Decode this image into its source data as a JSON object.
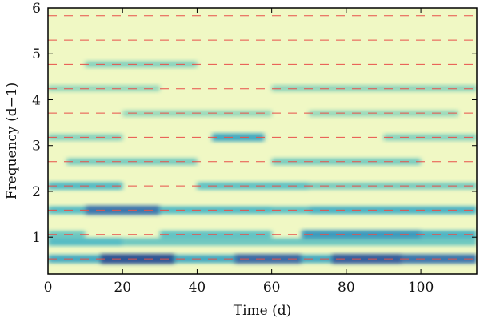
{
  "chart_data": {
    "type": "heatmap",
    "title": "",
    "xlabel": "Time (d)",
    "ylabel": "Frequency (d−1)",
    "xlim": [
      0,
      115
    ],
    "ylim": [
      0.2,
      6
    ],
    "x_ticks": [
      0,
      20,
      40,
      60,
      80,
      100
    ],
    "y_ticks": [
      1,
      2,
      3,
      4,
      5,
      6
    ],
    "x_tick_labels": [
      "0",
      "20",
      "40",
      "60",
      "80",
      "100"
    ],
    "y_tick_labels": [
      "1",
      "2",
      "3",
      "4",
      "5",
      "6"
    ],
    "colormap": [
      "#ffffd9",
      "#edf8b1",
      "#c7e9b4",
      "#7fcdbb",
      "#41b6c4",
      "#1d91c0",
      "#225ea8",
      "#0c2c84"
    ],
    "dashed_line_color": "#e8504a",
    "harmonic_frequencies": [
      0.53,
      1.06,
      1.59,
      2.12,
      2.65,
      3.18,
      3.71,
      4.24,
      4.77,
      5.3,
      5.83
    ],
    "bands": [
      {
        "freq": 0.53,
        "segments": [
          [
            0,
            14,
            0.55
          ],
          [
            14,
            34,
            0.95
          ],
          [
            34,
            50,
            0.55
          ],
          [
            50,
            68,
            0.85
          ],
          [
            68,
            76,
            0.55
          ],
          [
            76,
            95,
            0.9
          ],
          [
            95,
            115,
            0.8
          ]
        ]
      },
      {
        "freq": 0.9,
        "segments": [
          [
            0,
            20,
            0.45
          ],
          [
            20,
            115,
            0.35
          ]
        ]
      },
      {
        "freq": 1.06,
        "segments": [
          [
            0,
            10,
            0.35
          ],
          [
            30,
            60,
            0.4
          ],
          [
            68,
            100,
            0.65
          ],
          [
            100,
            115,
            0.5
          ]
        ]
      },
      {
        "freq": 1.59,
        "segments": [
          [
            0,
            10,
            0.45
          ],
          [
            10,
            30,
            0.8
          ],
          [
            30,
            60,
            0.45
          ],
          [
            60,
            70,
            0.4
          ],
          [
            70,
            115,
            0.5
          ]
        ]
      },
      {
        "freq": 2.12,
        "segments": [
          [
            0,
            20,
            0.45
          ],
          [
            40,
            70,
            0.4
          ],
          [
            70,
            115,
            0.3
          ]
        ]
      },
      {
        "freq": 2.65,
        "segments": [
          [
            5,
            40,
            0.3
          ],
          [
            60,
            100,
            0.3
          ]
        ]
      },
      {
        "freq": 3.18,
        "segments": [
          [
            0,
            20,
            0.25
          ],
          [
            44,
            58,
            0.55
          ],
          [
            90,
            115,
            0.25
          ]
        ]
      },
      {
        "freq": 3.7,
        "segments": [
          [
            20,
            60,
            0.2
          ],
          [
            70,
            110,
            0.2
          ]
        ]
      },
      {
        "freq": 4.25,
        "segments": [
          [
            0,
            30,
            0.2
          ],
          [
            60,
            115,
            0.22
          ]
        ]
      },
      {
        "freq": 4.77,
        "segments": [
          [
            10,
            40,
            0.25
          ]
        ]
      }
    ]
  }
}
